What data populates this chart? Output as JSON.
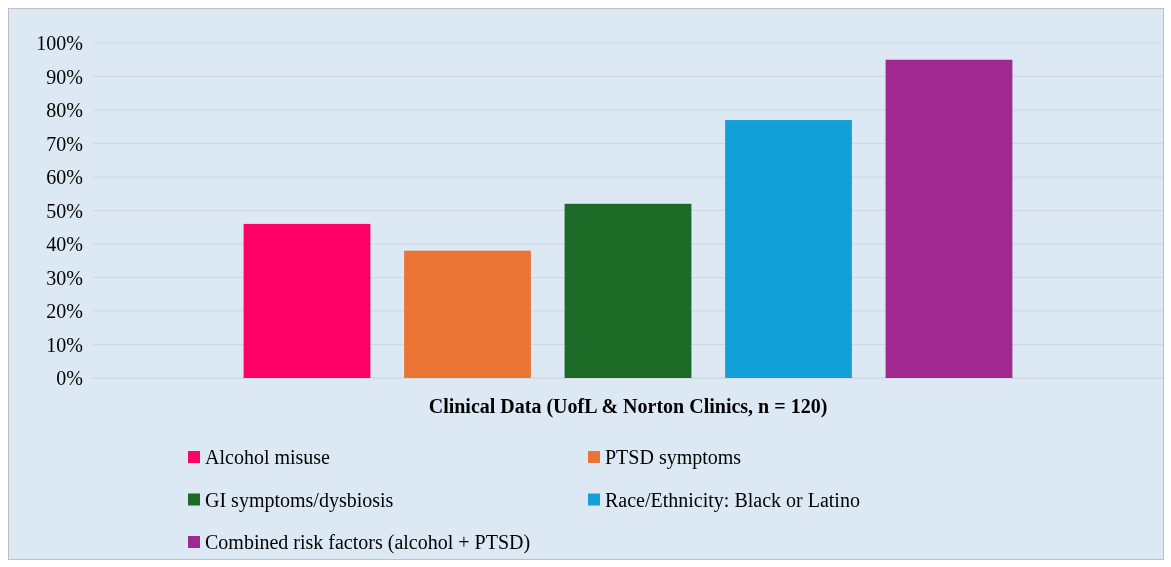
{
  "chart_data": {
    "type": "bar",
    "xlabel": "Clinical Data (UofL & Norton Clinics, n = 120)",
    "categories": [
      null
    ],
    "series": [
      {
        "name": "Alcohol misuse",
        "color": "#ff0066",
        "values": [
          46
        ]
      },
      {
        "name": "PTSD symptoms",
        "color": "#ea7433",
        "values": [
          38
        ]
      },
      {
        "name": "GI symptoms/dysbiosis",
        "color": "#1b6b26",
        "values": [
          52
        ]
      },
      {
        "name": "Race/Ethnicity: Black or Latino",
        "color": "#13a0d8",
        "values": [
          77
        ]
      },
      {
        "name": "Combined risk factors (alcohol + PTSD)",
        "color": "#a0298f",
        "values": [
          95
        ]
      }
    ],
    "ylim": [
      0,
      100
    ],
    "yticks": [
      {
        "value": 0,
        "label": "0%"
      },
      {
        "value": 10,
        "label": "10%"
      },
      {
        "value": 20,
        "label": "20%"
      },
      {
        "value": 30,
        "label": "30%"
      },
      {
        "value": 40,
        "label": "40%"
      },
      {
        "value": 50,
        "label": "50%"
      },
      {
        "value": 60,
        "label": "60%"
      },
      {
        "value": 70,
        "label": "70%"
      },
      {
        "value": 80,
        "label": "80%"
      },
      {
        "value": 90,
        "label": "90%"
      },
      {
        "value": 100,
        "label": "100%"
      }
    ],
    "grid": "y",
    "legend": "bottom"
  }
}
